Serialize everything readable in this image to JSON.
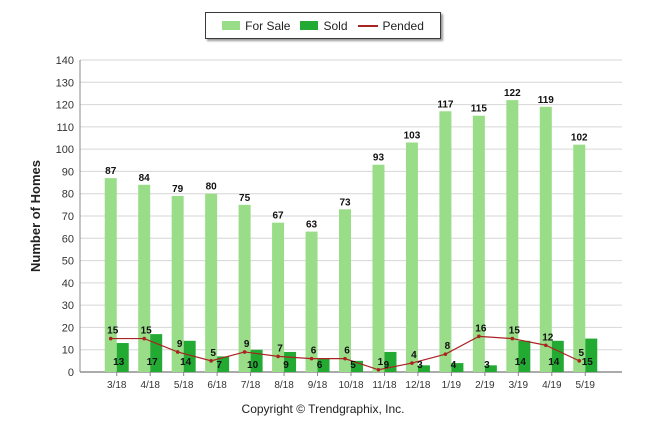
{
  "chart_data": {
    "type": "bar",
    "categories": [
      "3/18",
      "4/18",
      "5/18",
      "6/18",
      "7/18",
      "8/18",
      "9/18",
      "10/18",
      "11/18",
      "12/18",
      "1/19",
      "2/19",
      "3/19",
      "4/19",
      "5/19"
    ],
    "series": [
      {
        "name": "For Sale",
        "type": "bar",
        "color": "#99dd88",
        "values": [
          87,
          84,
          79,
          80,
          75,
          67,
          63,
          73,
          93,
          103,
          117,
          115,
          122,
          119,
          102
        ]
      },
      {
        "name": "Sold",
        "type": "bar",
        "color": "#22aa33",
        "values": [
          13,
          17,
          14,
          7,
          10,
          9,
          6,
          5,
          9,
          3,
          4,
          3,
          14,
          14,
          15
        ]
      },
      {
        "name": "Pended",
        "type": "line",
        "color": "#aa2222",
        "values": [
          15,
          15,
          9,
          5,
          9,
          7,
          6,
          6,
          1,
          4,
          8,
          16,
          15,
          12,
          5
        ]
      }
    ],
    "ylabel": "Number of Homes",
    "xlabel": "",
    "ylim": [
      0,
      140
    ],
    "yticks": [
      0,
      10,
      20,
      30,
      40,
      50,
      60,
      70,
      80,
      90,
      100,
      110,
      120,
      130,
      140
    ],
    "grid": true,
    "legend_position": "top-center"
  },
  "footer": {
    "copyright": "Copyright © Trendgraphix, Inc."
  }
}
